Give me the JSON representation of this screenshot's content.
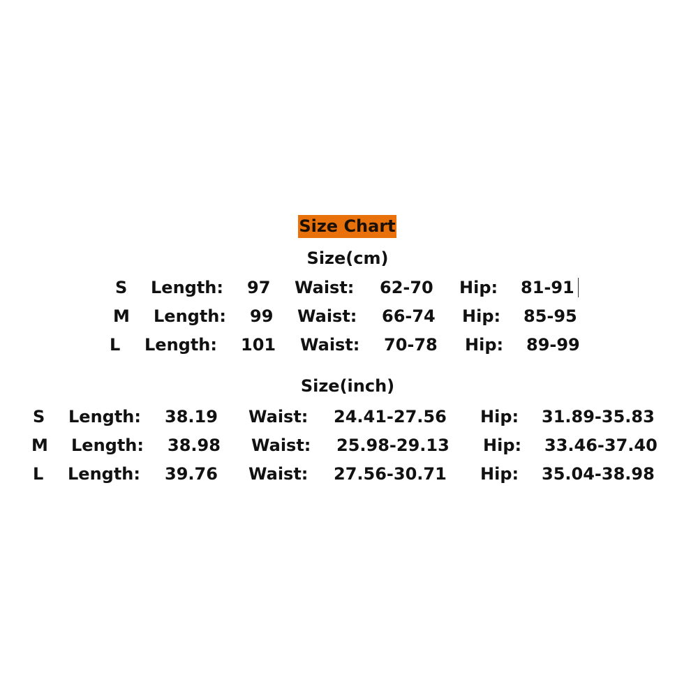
{
  "title": "Size Chart",
  "accent_color": "#e8710c",
  "cm": {
    "heading": "Size(cm)",
    "rows": [
      {
        "size": "S",
        "length_label": "Length:",
        "length": "97",
        "waist_label": "Waist:",
        "waist": "62-70",
        "hip_label": "Hip:",
        "hip": "81-91"
      },
      {
        "size": "M",
        "length_label": "Length:",
        "length": "99",
        "waist_label": "Waist:",
        "waist": "66-74",
        "hip_label": "Hip:",
        "hip": "85-95"
      },
      {
        "size": "L",
        "length_label": "Length:",
        "length": "101",
        "waist_label": "Waist:",
        "waist": "70-78",
        "hip_label": "Hip:",
        "hip": "89-99"
      }
    ]
  },
  "inch": {
    "heading": "Size(inch)",
    "rows": [
      {
        "size": "S",
        "length_label": "Length:",
        "length": "38.19",
        "waist_label": "Waist:",
        "waist": "24.41-27.56",
        "hip_label": "Hip:",
        "hip": "31.89-35.83"
      },
      {
        "size": "M",
        "length_label": "Length:",
        "length": "38.98",
        "waist_label": "Waist:",
        "waist": "25.98-29.13",
        "hip_label": "Hip:",
        "hip": "33.46-37.40"
      },
      {
        "size": "L",
        "length_label": "Length:",
        "length": "39.76",
        "waist_label": "Waist:",
        "waist": "27.56-30.71",
        "hip_label": "Hip:",
        "hip": "35.04-38.98"
      }
    ]
  }
}
